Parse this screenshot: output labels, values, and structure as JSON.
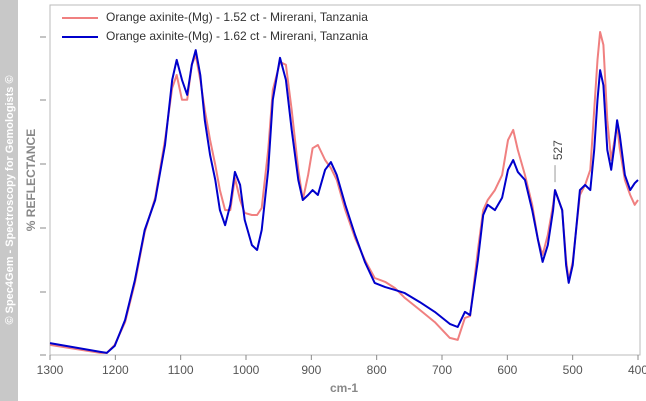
{
  "chart_data": {
    "type": "line",
    "watermark": "© Spec4Gem - Spectroscopy for Gemologists ©",
    "xlabel": "cm-1",
    "ylabel": "% REFLECTANCE",
    "xlim": [
      1300,
      400
    ],
    "xticks": [
      1300,
      1200,
      1100,
      1000,
      900,
      800,
      700,
      600,
      500,
      400
    ],
    "ylim": [
      0,
      100
    ],
    "legend": "top-left",
    "x": [
      1300,
      1223,
      1213,
      1201,
      1185,
      1170,
      1155,
      1139,
      1124,
      1113,
      1106,
      1098,
      1090,
      1083,
      1077,
      1070,
      1063,
      1055,
      1047,
      1040,
      1032,
      1024,
      1017,
      1009,
      1002,
      991,
      983,
      976,
      966,
      959,
      948,
      939,
      930,
      920,
      913,
      905,
      898,
      890,
      879,
      870,
      861,
      848,
      833,
      818,
      803,
      787,
      772,
      757,
      734,
      711,
      688,
      676,
      665,
      657,
      645,
      637,
      630,
      619,
      608,
      599,
      591,
      584,
      573,
      562,
      553,
      546,
      538,
      530,
      527,
      516,
      510,
      506,
      500,
      489,
      481,
      473,
      467,
      462,
      458,
      453,
      447,
      441,
      436,
      432,
      428,
      420,
      412,
      405,
      400
    ],
    "series": [
      {
        "name": "Orange axinite-(Mg) - 1.52 ct - Mirerani, Tanzania",
        "color": "#f08080",
        "values": [
          2.9,
          0.6,
          0.6,
          2.9,
          9.4,
          20.6,
          35.1,
          44.9,
          61.4,
          76.3,
          80.0,
          72.9,
          72.9,
          82.9,
          85.7,
          78.6,
          70.0,
          61.4,
          54.3,
          47.1,
          41.4,
          41.4,
          50.6,
          44.3,
          40.6,
          40.0,
          40.0,
          42.0,
          58.6,
          75.7,
          83.7,
          82.9,
          70.0,
          52.9,
          44.3,
          51.4,
          59.1,
          60.0,
          55.7,
          53.4,
          50.0,
          41.4,
          33.4,
          27.1,
          22.0,
          20.9,
          19.1,
          16.3,
          12.9,
          9.4,
          4.9,
          4.3,
          10.6,
          11.1,
          30.0,
          41.4,
          44.3,
          47.1,
          51.4,
          61.4,
          64.3,
          58.6,
          51.4,
          42.9,
          32.9,
          28.6,
          34.3,
          42.9,
          47.1,
          41.4,
          27.1,
          21.4,
          26.6,
          45.7,
          48.6,
          52.9,
          70.0,
          84.3,
          92.3,
          88.6,
          67.1,
          55.7,
          61.4,
          65.7,
          59.1,
          50.0,
          45.7,
          42.9,
          44.3
        ]
      },
      {
        "name": "Orange axinite-(Mg) - 1.62 ct - Mirerani, Tanzania",
        "color": "#0000cc",
        "values": [
          3.4,
          0.9,
          0.6,
          2.6,
          10.0,
          21.4,
          35.7,
          44.3,
          60.0,
          78.6,
          84.3,
          78.6,
          74.3,
          82.9,
          87.1,
          80.0,
          67.1,
          57.1,
          50.0,
          41.4,
          37.1,
          42.9,
          52.3,
          48.6,
          38.6,
          31.4,
          30.0,
          35.7,
          52.9,
          72.9,
          84.9,
          78.6,
          64.3,
          50.0,
          44.3,
          45.7,
          47.1,
          45.7,
          52.9,
          55.1,
          51.4,
          42.9,
          34.3,
          26.6,
          20.6,
          19.4,
          18.6,
          17.7,
          15.1,
          12.3,
          8.9,
          8.0,
          12.3,
          11.4,
          27.1,
          40.0,
          42.9,
          41.4,
          44.9,
          52.9,
          55.7,
          52.3,
          50.0,
          41.4,
          32.9,
          26.6,
          31.4,
          41.4,
          47.1,
          41.4,
          25.7,
          20.6,
          25.7,
          47.1,
          48.6,
          47.1,
          58.6,
          72.9,
          81.4,
          77.1,
          58.6,
          52.9,
          60.0,
          67.1,
          62.9,
          51.4,
          47.1,
          49.1,
          50.0
        ]
      }
    ],
    "annotations": [
      {
        "text": "527",
        "x": 527
      }
    ]
  }
}
